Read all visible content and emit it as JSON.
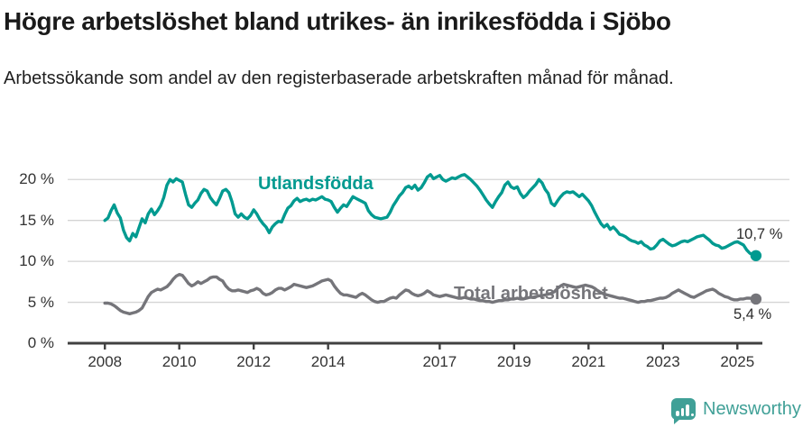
{
  "header": {
    "title": "Högre arbetslöshet bland utrikes- än inrikesfödda i Sjöbo",
    "subtitle": "Arbetssökande som andel av den registerbaserade arbetskraften månad för månad."
  },
  "chart_data": {
    "type": "line",
    "grid": true,
    "x_start_year": 2008,
    "x_start_month": 1,
    "points_per_year": 12,
    "x_end_label_period": "2025-07",
    "xlim": [
      2007.0,
      2026.4
    ],
    "ylim": [
      0,
      23
    ],
    "x_ticks": [
      2008,
      2010,
      2012,
      2014,
      2017,
      2019,
      2021,
      2023,
      2025
    ],
    "y_ticks": [
      0,
      5,
      10,
      15,
      20
    ],
    "y_tick_labels": [
      "0 %",
      "5 %",
      "10 %",
      "15 %",
      "20 %"
    ],
    "series": [
      {
        "name": "Utlandsfödda",
        "color": "#009a90",
        "end_label": "10,7 %",
        "end_value": 10.7,
        "values": [
          15.0,
          15.3,
          16.2,
          16.9,
          15.9,
          15.3,
          13.8,
          12.9,
          12.5,
          13.4,
          13.0,
          14.1,
          15.2,
          14.7,
          15.8,
          16.4,
          15.7,
          16.2,
          16.8,
          17.8,
          19.3,
          20.0,
          19.7,
          20.1,
          19.9,
          19.7,
          18.2,
          16.9,
          16.6,
          17.1,
          17.5,
          18.3,
          18.8,
          18.6,
          17.8,
          17.3,
          16.9,
          17.7,
          18.6,
          18.8,
          18.4,
          17.3,
          15.8,
          15.4,
          15.8,
          15.4,
          15.2,
          15.6,
          16.3,
          15.8,
          15.1,
          14.6,
          14.2,
          13.5,
          14.2,
          14.6,
          14.9,
          14.8,
          15.7,
          16.5,
          16.8,
          17.4,
          17.7,
          17.3,
          17.5,
          17.6,
          17.4,
          17.6,
          17.5,
          17.7,
          17.9,
          17.6,
          17.5,
          17.3,
          16.6,
          16.0,
          16.5,
          16.9,
          16.7,
          17.3,
          17.9,
          17.7,
          17.5,
          17.3,
          17.1,
          16.2,
          15.7,
          15.4,
          15.3,
          15.2,
          15.3,
          15.4,
          16.0,
          16.8,
          17.4,
          18.0,
          18.4,
          19.0,
          19.2,
          18.9,
          19.3,
          18.7,
          19.0,
          19.6,
          20.3,
          20.6,
          20.1,
          20.3,
          20.5,
          20.0,
          19.8,
          20.0,
          20.2,
          20.1,
          20.3,
          20.5,
          20.6,
          20.3,
          20.0,
          19.6,
          19.2,
          18.7,
          18.1,
          17.5,
          17.0,
          16.6,
          17.3,
          17.9,
          18.4,
          19.3,
          19.7,
          19.1,
          18.9,
          19.1,
          18.3,
          17.8,
          18.1,
          18.6,
          19.0,
          19.4,
          20.0,
          19.6,
          18.8,
          18.3,
          17.1,
          16.8,
          17.4,
          17.9,
          18.3,
          18.5,
          18.4,
          18.5,
          18.2,
          17.9,
          18.2,
          17.8,
          17.4,
          16.8,
          16.0,
          15.3,
          14.6,
          14.2,
          14.5,
          13.9,
          14.2,
          13.8,
          13.3,
          13.2,
          13.0,
          12.7,
          12.5,
          12.4,
          12.2,
          12.4,
          12.0,
          11.8,
          11.5,
          11.6,
          12.0,
          12.5,
          12.7,
          12.4,
          12.1,
          11.9,
          12.0,
          12.2,
          12.4,
          12.5,
          12.4,
          12.6,
          12.8,
          13.0,
          13.1,
          13.2,
          12.9,
          12.6,
          12.2,
          12.0,
          11.9,
          11.6,
          11.7,
          11.9,
          12.1,
          12.3,
          12.4,
          12.2,
          12.0,
          11.4,
          11.0,
          10.8,
          10.7
        ]
      },
      {
        "name": "Total arbetslöshet",
        "color": "#75757a",
        "end_label": "5,4 %",
        "end_value": 5.4,
        "values": [
          4.9,
          4.9,
          4.8,
          4.6,
          4.3,
          4.0,
          3.8,
          3.7,
          3.6,
          3.7,
          3.8,
          4.0,
          4.3,
          5.0,
          5.7,
          6.2,
          6.4,
          6.6,
          6.5,
          6.7,
          6.9,
          7.3,
          7.8,
          8.2,
          8.4,
          8.3,
          7.8,
          7.3,
          7.0,
          7.2,
          7.5,
          7.3,
          7.5,
          7.7,
          8.0,
          8.1,
          8.1,
          7.8,
          7.6,
          7.0,
          6.6,
          6.4,
          6.4,
          6.5,
          6.4,
          6.3,
          6.2,
          6.4,
          6.5,
          6.7,
          6.5,
          6.1,
          5.9,
          6.0,
          6.2,
          6.5,
          6.7,
          6.7,
          6.5,
          6.7,
          6.9,
          7.2,
          7.1,
          7.0,
          6.9,
          6.8,
          6.9,
          7.0,
          7.2,
          7.4,
          7.6,
          7.7,
          7.8,
          7.6,
          7.0,
          6.5,
          6.1,
          5.9,
          5.9,
          5.8,
          5.7,
          5.6,
          5.9,
          6.1,
          5.9,
          5.6,
          5.3,
          5.1,
          5.0,
          5.1,
          5.1,
          5.3,
          5.5,
          5.6,
          5.5,
          5.9,
          6.2,
          6.5,
          6.4,
          6.1,
          5.9,
          5.8,
          5.9,
          6.1,
          6.4,
          6.2,
          5.9,
          5.8,
          5.7,
          5.8,
          5.9,
          5.8,
          5.7,
          5.6,
          5.5,
          5.5,
          5.6,
          5.5,
          5.4,
          5.4,
          5.3,
          5.2,
          5.2,
          5.1,
          5.1,
          5.0,
          5.1,
          5.2,
          5.2,
          5.3,
          5.3,
          5.4,
          5.4,
          5.5,
          5.4,
          5.4,
          5.5,
          5.6,
          5.6,
          5.7,
          5.8,
          5.8,
          5.9,
          6.0,
          6.1,
          6.3,
          6.7,
          7.0,
          7.2,
          7.1,
          7.0,
          6.9,
          6.8,
          6.9,
          7.0,
          7.1,
          7.0,
          6.9,
          6.7,
          6.4,
          6.2,
          6.0,
          5.9,
          5.8,
          5.7,
          5.6,
          5.5,
          5.5,
          5.4,
          5.3,
          5.2,
          5.1,
          5.0,
          5.1,
          5.1,
          5.2,
          5.2,
          5.3,
          5.4,
          5.5,
          5.5,
          5.6,
          5.8,
          6.1,
          6.3,
          6.5,
          6.3,
          6.1,
          5.9,
          5.7,
          5.6,
          5.8,
          6.0,
          6.2,
          6.4,
          6.5,
          6.6,
          6.4,
          6.1,
          5.9,
          5.7,
          5.6,
          5.4,
          5.3,
          5.3,
          5.4,
          5.4,
          5.5,
          5.5,
          5.4,
          5.4
        ]
      }
    ],
    "colors": {
      "accent_teal": "#009a90",
      "line_gray": "#75757a",
      "grid": "#d4d4d4",
      "axis": "#404040",
      "tick_text": "#333333"
    }
  },
  "footer": {
    "brand": "Newsworthy"
  }
}
